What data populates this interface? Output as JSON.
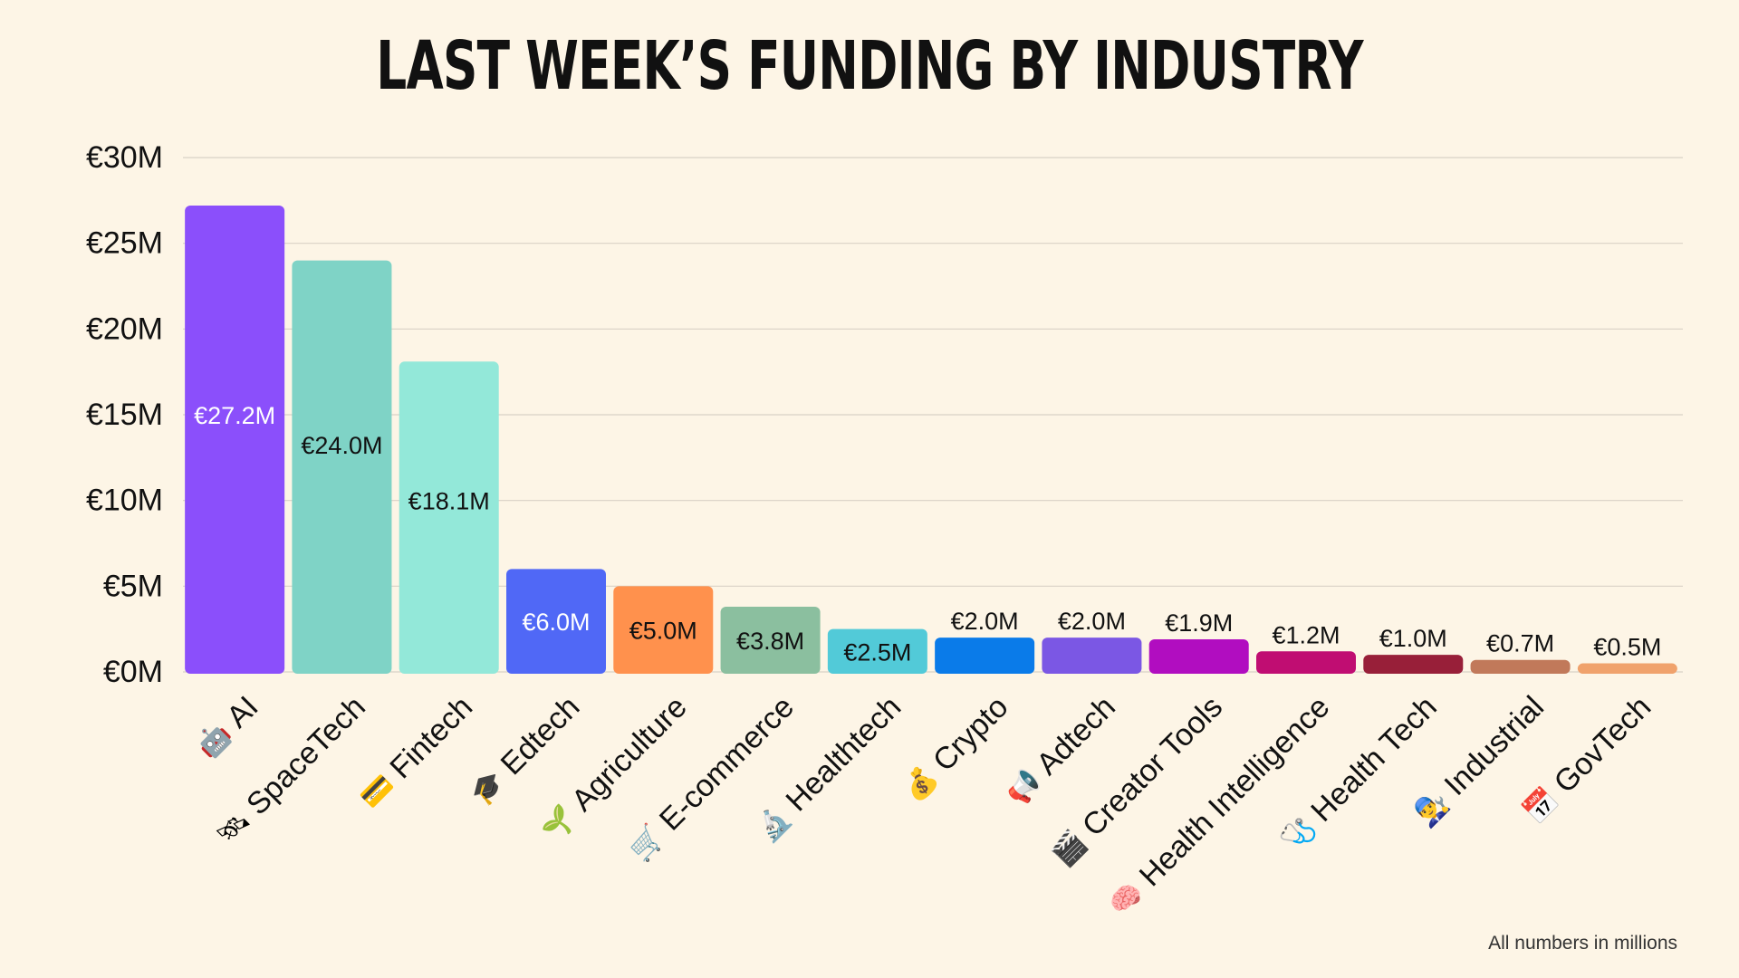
{
  "chart_data": {
    "type": "bar",
    "title": "LAST WEEK’S FUNDING BY INDUSTRY",
    "xlabel": "",
    "ylabel": "",
    "ylim": [
      0,
      30
    ],
    "yticks": [
      0,
      5,
      10,
      15,
      20,
      25,
      30
    ],
    "ytick_labels": [
      "€0M",
      "€5M",
      "€10M",
      "€15M",
      "€20M",
      "€25M",
      "€30M"
    ],
    "grid": true,
    "categories": [
      "AI",
      "SpaceTech",
      "Fintech",
      "Edtech",
      "Agriculture",
      "E-commerce",
      "Healthtech",
      "Crypto",
      "Adtech",
      "Creator Tools",
      "Health Intelligence",
      "Health Tech",
      "Industrial",
      "GovTech"
    ],
    "values": [
      27.2,
      24.0,
      18.1,
      6.0,
      5.0,
      3.8,
      2.5,
      2.0,
      2.0,
      1.9,
      1.2,
      1.0,
      0.7,
      0.5
    ],
    "value_labels": [
      "€27.2M",
      "€24.0M",
      "€18.1M",
      "€6.0M",
      "€5.0M",
      "€3.8M",
      "€2.5M",
      "€2.0M",
      "€2.0M",
      "€1.9M",
      "€1.2M",
      "€1.0M",
      "€0.7M",
      "€0.5M"
    ],
    "colors": [
      "#8b4ffb",
      "#7fd3c6",
      "#93e8d9",
      "#5068f6",
      "#ff914d",
      "#8bbf9f",
      "#52cad8",
      "#0a7be9",
      "#7b57e4",
      "#b10dc0",
      "#c00d72",
      "#981f39",
      "#c1795a",
      "#f0a26c"
    ],
    "label_colors": [
      "#ffffff",
      "#111111",
      "#111111",
      "#ffffff",
      "#111111",
      "#111111",
      "#111111",
      "#ffffff",
      "#ffffff",
      "#111111",
      "#111111",
      "#111111",
      "#111111",
      "#111111"
    ],
    "icons": [
      "🤖",
      "🛰",
      "💳",
      "🎓",
      "🌱",
      "🛒",
      "🔬",
      "💰",
      "📢",
      "🎬",
      "🧠",
      "🩺",
      "👨‍🔧",
      "📅"
    ],
    "footnote": "All numbers in millions"
  }
}
